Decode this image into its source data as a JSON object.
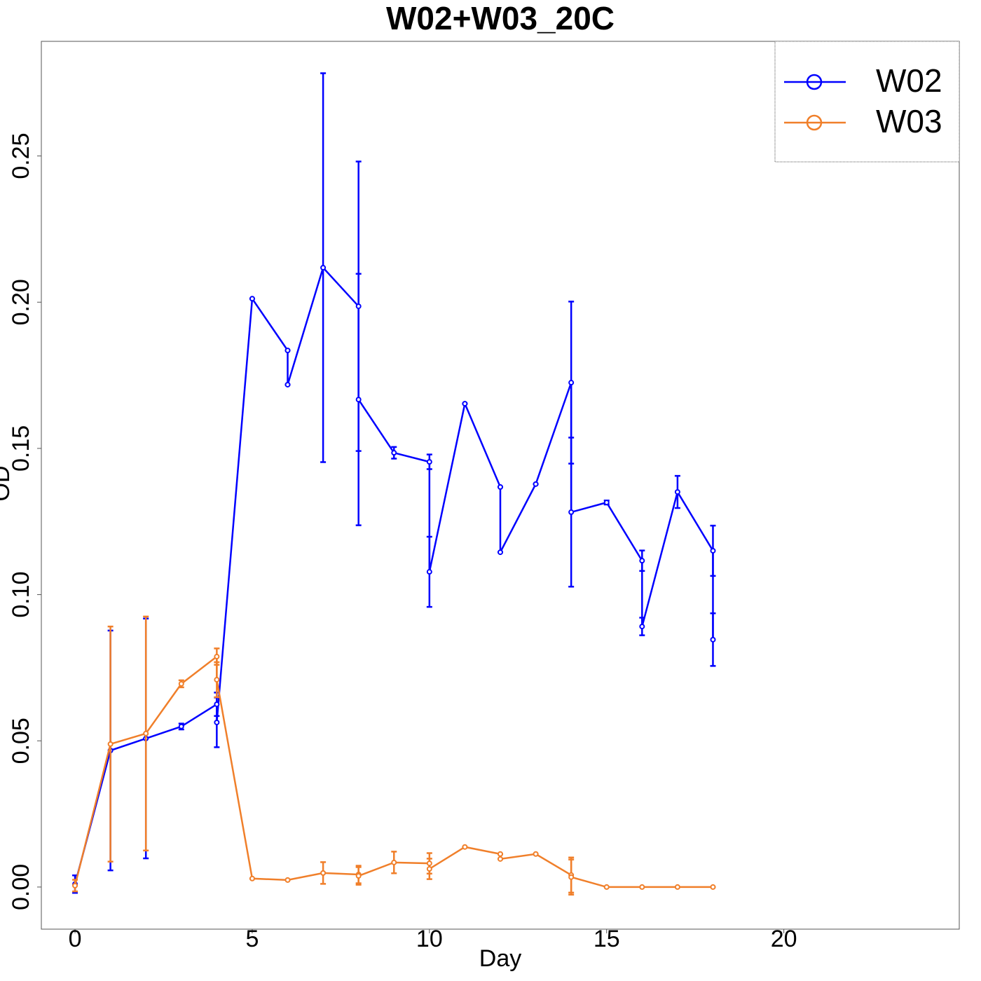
{
  "chart_data": {
    "type": "line",
    "title": "W02+W03_20C",
    "x_label": "Day",
    "y_label": "OD",
    "xlim": [
      -0.95,
      24.95
    ],
    "ylim": [
      -0.0144,
      0.2892
    ],
    "xticks": [
      0,
      5,
      10,
      15,
      20
    ],
    "yticks": [
      {
        "value": 0,
        "label": "0.00"
      },
      {
        "value": 0.05,
        "label": "0.05"
      },
      {
        "value": 0.1,
        "label": "0.10"
      },
      {
        "value": 0.15,
        "label": "0.15"
      },
      {
        "value": 0.2,
        "label": "0.20"
      },
      {
        "value": 0.25,
        "label": "0.25"
      }
    ],
    "legend": "top-right",
    "series": [
      {
        "name": "W02",
        "color": "#0000ff",
        "x": [
          0,
          1,
          2,
          3,
          4,
          4,
          5,
          6,
          6,
          7,
          8,
          8,
          9,
          10,
          10,
          11,
          12,
          12,
          13,
          14,
          14,
          15,
          16,
          16,
          17,
          18,
          18
        ],
        "values": [
          0.001,
          0.0467,
          0.0508,
          0.0549,
          0.0625,
          0.0563,
          0.2012,
          0.1835,
          0.1718,
          0.2118,
          0.1986,
          0.1667,
          0.1485,
          0.1454,
          0.1078,
          0.1653,
          0.1368,
          0.1145,
          0.1378,
          0.1725,
          0.1282,
          0.1315,
          0.1116,
          0.0891,
          0.1351,
          0.115,
          0.0846
        ],
        "errors": [
          0.003,
          0.041,
          0.041,
          0.001,
          0.004,
          0.0085,
          0,
          0,
          0,
          0.0665,
          0.0495,
          0.043,
          0.002,
          0.0025,
          0.012,
          0,
          0,
          0,
          0,
          0.0277,
          0.0255,
          0.0007,
          0.0035,
          0.003,
          0.0055,
          0.0086,
          0.009
        ]
      },
      {
        "name": "W03",
        "color": "#f07f2a",
        "x": [
          0,
          1,
          2,
          3,
          4,
          4,
          5,
          6,
          7,
          8,
          8,
          9,
          10,
          10,
          11,
          12,
          12,
          13,
          14,
          14,
          15,
          16,
          17,
          18
        ],
        "values": [
          0.0005,
          0.0489,
          0.0525,
          0.0695,
          0.0788,
          0.0709,
          0.0029,
          0.0024,
          0.0048,
          0.0043,
          0.0038,
          0.0084,
          0.0081,
          0.0062,
          0.0137,
          0.0113,
          0.0096,
          0.0113,
          0.0041,
          0.0034,
          0,
          0,
          0,
          0
        ],
        "errors": [
          0.002,
          0.0402,
          0.04,
          0.0012,
          0.0028,
          0.006,
          0,
          0,
          0.0037,
          0.003,
          0.003,
          0.0037,
          0.0035,
          0.0035,
          0,
          0,
          0,
          0,
          0.006,
          0.006,
          0,
          0,
          0,
          0
        ]
      }
    ]
  }
}
